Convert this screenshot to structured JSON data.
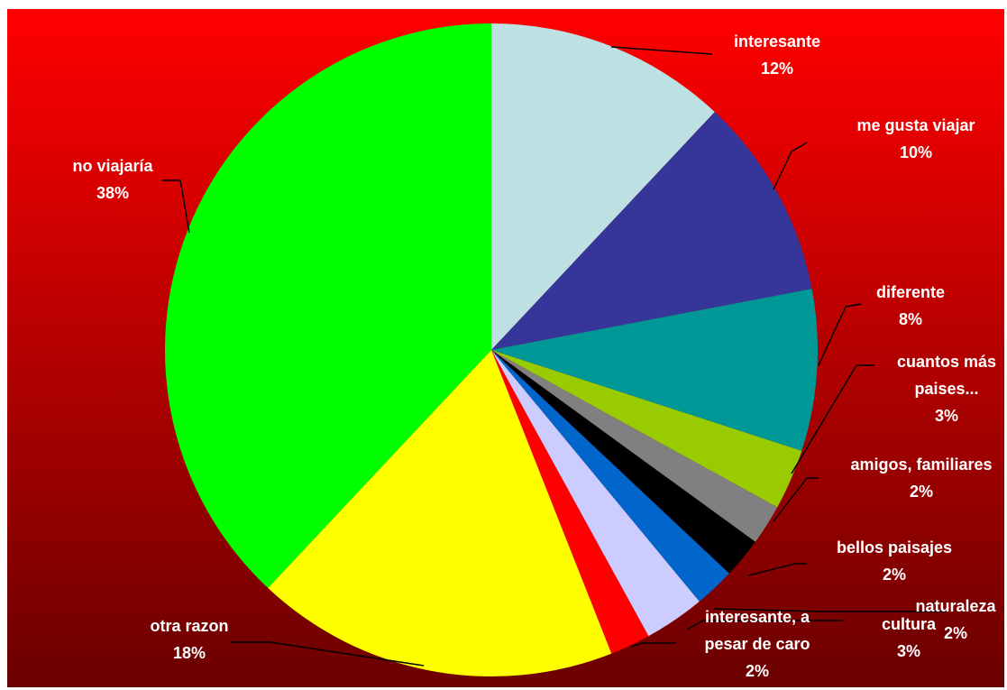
{
  "chart_data": {
    "type": "pie",
    "title": "",
    "slices": [
      {
        "name": "interesante",
        "label_lines": [
          "interesante"
        ],
        "value": 12,
        "pct_label": "12%",
        "color": "#BDE0E3"
      },
      {
        "name": "me gusta viajar",
        "label_lines": [
          "me gusta viajar"
        ],
        "value": 10,
        "pct_label": "10%",
        "color": "#35359A"
      },
      {
        "name": "diferente",
        "label_lines": [
          "diferente"
        ],
        "value": 8,
        "pct_label": "8%",
        "color": "#009797"
      },
      {
        "name": "cuantos más paises...",
        "label_lines": [
          "cuantos más",
          "paises..."
        ],
        "value": 3,
        "pct_label": "3%",
        "color": "#99CC00"
      },
      {
        "name": "amigos, familiares",
        "label_lines": [
          "amigos, familiares"
        ],
        "value": 2,
        "pct_label": "2%",
        "color": "#808080"
      },
      {
        "name": "bellos paisajes",
        "label_lines": [
          "bellos paisajes"
        ],
        "value": 2,
        "pct_label": "2%",
        "color": "#000000"
      },
      {
        "name": "naturaleza",
        "label_lines": [
          "naturaleza"
        ],
        "value": 2,
        "pct_label": "2%",
        "color": "#0066CC"
      },
      {
        "name": "cultura",
        "label_lines": [
          "cultura"
        ],
        "value": 3,
        "pct_label": "3%",
        "color": "#CCCCFF"
      },
      {
        "name": "interesante, a pesar de caro",
        "label_lines": [
          "interesante, a",
          "pesar de caro"
        ],
        "value": 2,
        "pct_label": "2%",
        "color": "#FF0000"
      },
      {
        "name": "otra razon",
        "label_lines": [
          "otra razon"
        ],
        "value": 18,
        "pct_label": "18%",
        "color": "#FFFF00"
      },
      {
        "name": "no viajaría",
        "label_lines": [
          "no viajaría"
        ],
        "value": 38,
        "pct_label": "38%",
        "color": "#00FF00"
      }
    ],
    "legend": "none",
    "background": {
      "top_color": "#FF0000",
      "bottom_color": "#6B0000"
    },
    "label_color": "#FFFFFF",
    "leader_line_color": "#000000"
  }
}
